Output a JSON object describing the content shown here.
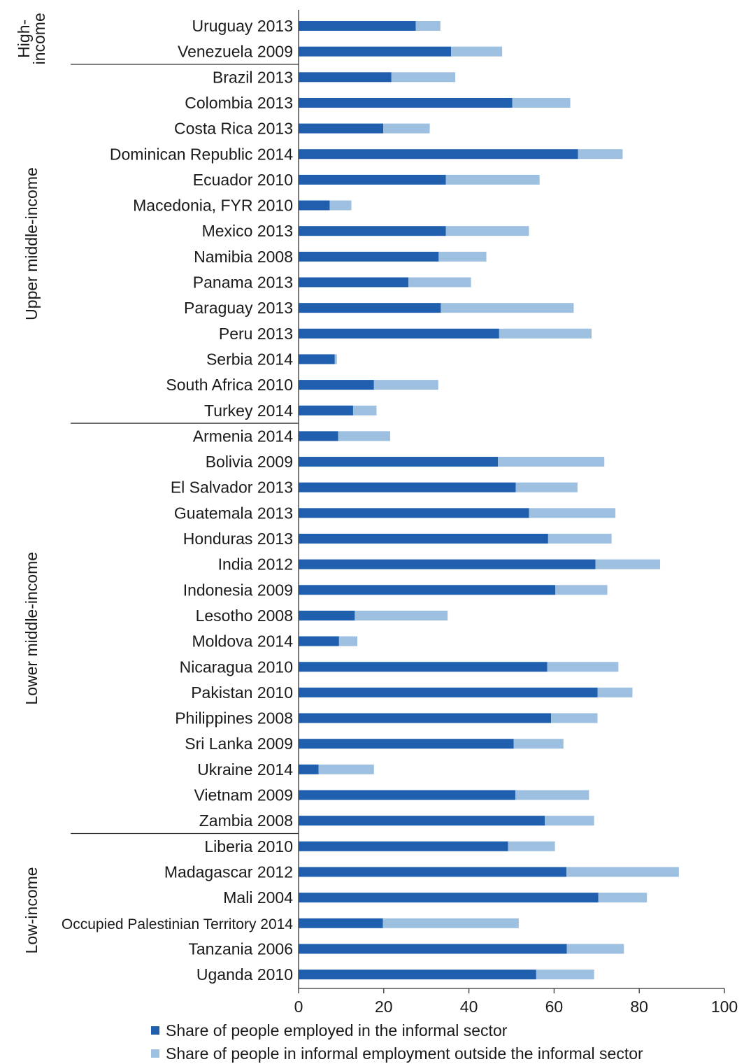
{
  "chart_data": {
    "type": "bar",
    "orientation": "horizontal",
    "stacked": true,
    "xlim": [
      0,
      100
    ],
    "xticks": [
      0,
      20,
      40,
      60,
      80,
      100
    ],
    "grid": false,
    "legend_position": "bottom",
    "categories": [
      "Uruguay 2013",
      "Venezuela 2009",
      "Brazil 2013",
      "Colombia 2013",
      "Costa Rica 2013",
      "Dominican Republic 2014",
      "Ecuador 2010",
      "Macedonia, FYR 2010",
      "Mexico 2013",
      "Namibia 2008",
      "Panama 2013",
      "Paraguay 2013",
      "Peru 2013",
      "Serbia 2014",
      "South Africa 2010",
      "Turkey 2014",
      "Armenia 2014",
      "Bolivia 2009",
      "El Salvador 2013",
      "Guatemala 2013",
      "Honduras 2013",
      "India 2012",
      "Indonesia 2009",
      "Lesotho 2008",
      "Moldova 2014",
      "Nicaragua 2010",
      "Pakistan 2010",
      "Philippines 2008",
      "Sri Lanka 2009",
      "Ukraine 2014",
      "Vietnam 2009",
      "Zambia 2008",
      "Liberia 2010",
      "Madagascar 2012",
      "Mali 2004",
      "Occupied Palestinian Territory 2014",
      "Tanzania 2006",
      "Uganda 2010"
    ],
    "groups": [
      {
        "label": "High-\nincome",
        "start": 0,
        "end": 1
      },
      {
        "label": "Upper middle-income",
        "start": 2,
        "end": 15
      },
      {
        "label": "Lower middle-income",
        "start": 16,
        "end": 31
      },
      {
        "label": "Low-income",
        "start": 32,
        "end": 37
      }
    ],
    "series": [
      {
        "name": "Share of people employed in the informal sector",
        "color": "#1f5fae",
        "values": [
          27.5,
          35.8,
          21.8,
          50.2,
          19.9,
          65.6,
          34.6,
          7.3,
          34.6,
          32.9,
          25.8,
          33.4,
          47.1,
          8.5,
          17.7,
          12.8,
          9.3,
          46.8,
          51.0,
          54.1,
          58.6,
          69.7,
          60.3,
          13.2,
          9.5,
          58.4,
          70.2,
          59.3,
          50.5,
          4.7,
          50.9,
          57.8,
          49.2,
          62.9,
          70.4,
          19.8,
          63.0,
          55.8
        ]
      },
      {
        "name": "Share of people in informal employment outside the informal sector",
        "color": "#9dbfe0",
        "values": [
          5.8,
          12.0,
          15.0,
          13.6,
          10.9,
          10.5,
          22.0,
          5.1,
          19.5,
          11.2,
          14.7,
          31.2,
          21.7,
          0.5,
          15.1,
          5.5,
          12.2,
          25.0,
          14.5,
          20.3,
          14.9,
          15.2,
          12.2,
          21.8,
          4.3,
          16.7,
          8.2,
          10.9,
          11.7,
          13.0,
          17.3,
          11.6,
          11.0,
          26.4,
          11.4,
          31.9,
          13.4,
          13.6
        ]
      }
    ]
  }
}
